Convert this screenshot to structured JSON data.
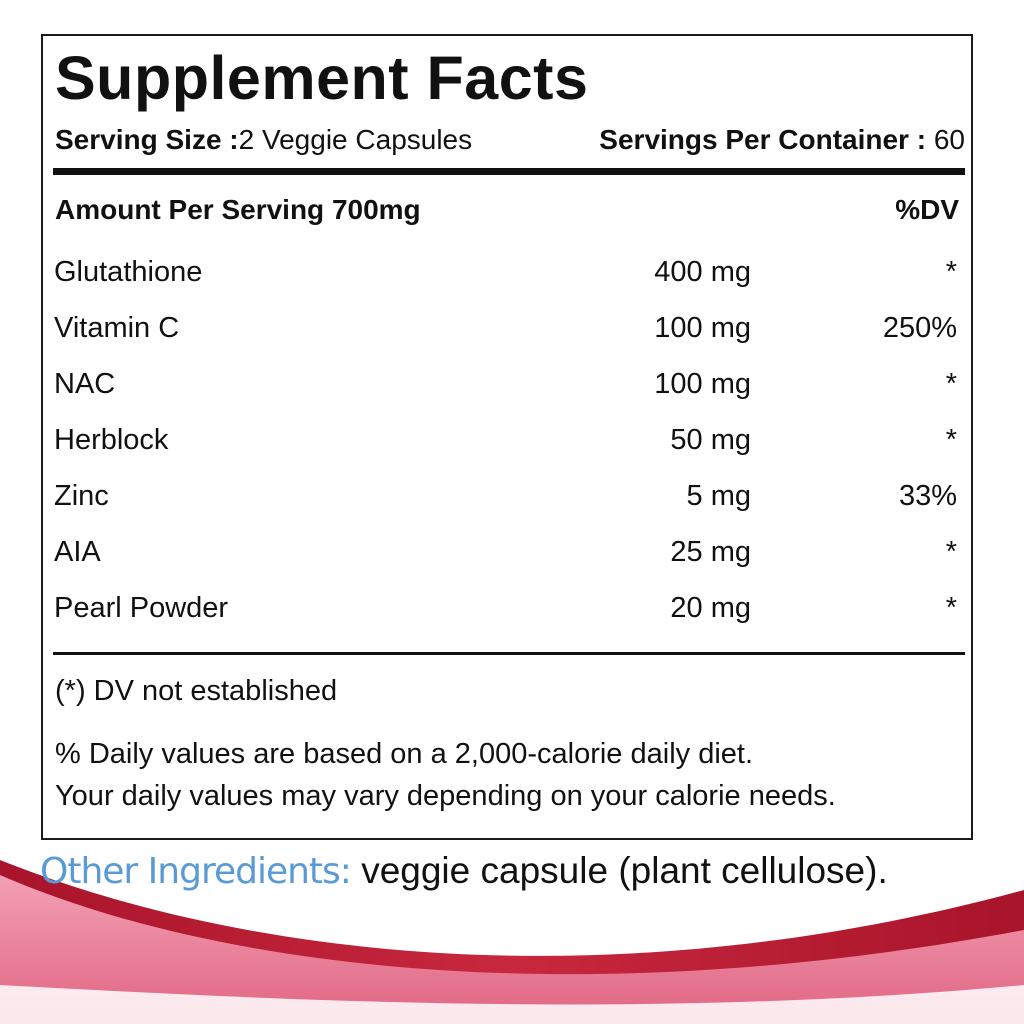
{
  "title": "Supplement Facts",
  "serving": {
    "size_label": "Serving Size :",
    "size_value": "2 Veggie Capsules",
    "per_container_label": "Servings Per Container :",
    "per_container_value": "60"
  },
  "header": {
    "amount_label": "Amount Per Serving 700mg",
    "dv_label": "%DV"
  },
  "ingredients": [
    {
      "name": "Glutathione",
      "amount": "400 mg",
      "dv": "*"
    },
    {
      "name": "Vitamin C",
      "amount": "100 mg",
      "dv": "250%"
    },
    {
      "name": "NAC",
      "amount": "100 mg",
      "dv": "*"
    },
    {
      "name": "Herblock",
      "amount": "50 mg",
      "dv": "*"
    },
    {
      "name": "Zinc",
      "amount": "5 mg",
      "dv": "33%"
    },
    {
      "name": "AIA",
      "amount": "25 mg",
      "dv": "*"
    },
    {
      "name": "Pearl Powder",
      "amount": "20 mg",
      "dv": "*"
    }
  ],
  "footnote": "(*) DV not established",
  "disclaimer": {
    "line1": "% Daily values are based on a 2,000-calorie daily diet.",
    "line2": "Your daily values may vary depending on your calorie needs."
  },
  "other_ingredients": {
    "label": "Other Ingredients:",
    "value": " veggie capsule (plant cellulose)."
  },
  "colors": {
    "label_blue": "#5b9bd5",
    "swoosh_red": "#c0283a",
    "swoosh_pink": "#e87a92",
    "text": "#111111"
  }
}
